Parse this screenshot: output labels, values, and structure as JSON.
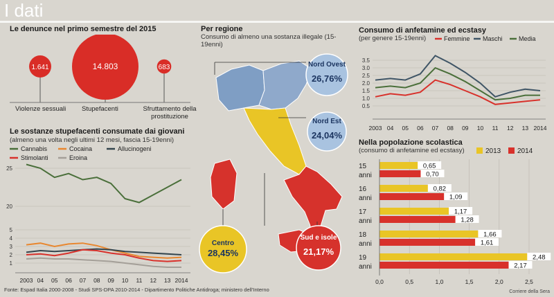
{
  "header": {
    "title": "I dati"
  },
  "denunce": {
    "title": "Le denunce nel primo semestre del 2015",
    "items": [
      {
        "label": "Violenze sessuali",
        "value": 1641,
        "text": "1.641"
      },
      {
        "label": "Stupefacenti",
        "value": 14803,
        "text": "14.803"
      },
      {
        "label": "Sfruttamento della prostituzione",
        "value": 683,
        "text": "683"
      }
    ],
    "color": "#d92d27"
  },
  "sostanze": {
    "title": "Le sostanze stupefacenti consumate dai giovani",
    "subtitle": "(almeno una volta negli ultimi 12 mesi, fascia 15-19enni)",
    "legend": [
      "Cannabis",
      "Cocaina",
      "Allucinogeni",
      "Stimolanti",
      "Eroina"
    ]
  },
  "regione": {
    "title": "Per regione",
    "subtitle": "Consumo di almeno una sostanza illegale (15-19enni)",
    "regions": [
      {
        "name": "Nord Ovest",
        "text": "26,76%",
        "value": 26.76,
        "color": "#7f9ec4"
      },
      {
        "name": "Nord Est",
        "text": "24,04%",
        "value": 24.04,
        "color": "#7f9ec4"
      },
      {
        "name": "Centro",
        "text": "28,45%",
        "value": 28.45,
        "color": "#e9c526"
      },
      {
        "name": "Sud e isole",
        "text": "21,17%",
        "value": 21.17,
        "color": "#d6322c"
      }
    ]
  },
  "anfetamine": {
    "title": "Consumo di anfetamine ed ecstasy",
    "subtitle": "(per genere 15-19enni)",
    "legend": [
      "Femmine",
      "Maschi",
      "Media"
    ]
  },
  "scolastica": {
    "title": "Nella popolazione scolastica",
    "subtitle": "(consumo di anfetamine ed ecstasy)",
    "legend": [
      "2013",
      "2014"
    ],
    "anni_label": "anni"
  },
  "footer": {
    "source": "Fonte: Espad Italia 2000-2008 - Studi SPS-DPA 2010-2014 - Dipartimento Politiche Antidroga; ministero dell'Interno",
    "credit": "Corriere della Sera"
  },
  "chart_data": [
    {
      "type": "scatter",
      "title": "Le denunce nel primo semestre del 2015",
      "categories": [
        "Violenze sessuali",
        "Stupefacenti",
        "Sfruttamento della prostituzione"
      ],
      "values": [
        1641,
        14803,
        683
      ]
    },
    {
      "type": "line",
      "title": "Le sostanze stupefacenti consumate dai giovani",
      "x": [
        "2003",
        "04",
        "05",
        "06",
        "07",
        "08",
        "09",
        "10",
        "11",
        "12",
        "13",
        "2014"
      ],
      "yticks": [
        1,
        2,
        3,
        4,
        5,
        20,
        25,
        30
      ],
      "series": [
        {
          "name": "Cannabis",
          "color": "#4a6f3a",
          "values": [
            25.5,
            25.0,
            23.8,
            24.3,
            23.5,
            23.8,
            23.0,
            21.0,
            20.5,
            21.5,
            22.5,
            23.5
          ]
        },
        {
          "name": "Cocaina",
          "color": "#e8872f",
          "values": [
            3.2,
            3.4,
            3.0,
            3.3,
            3.4,
            3.1,
            2.6,
            2.2,
            1.8,
            1.7,
            1.6,
            1.7
          ]
        },
        {
          "name": "Allucinogeni",
          "color": "#33444d",
          "values": [
            2.3,
            2.5,
            2.4,
            2.5,
            2.6,
            2.7,
            2.6,
            2.4,
            2.3,
            2.2,
            2.1,
            2.0
          ]
        },
        {
          "name": "Stimolanti",
          "color": "#d8312b",
          "values": [
            2.0,
            2.1,
            1.9,
            2.2,
            2.6,
            2.5,
            2.2,
            2.0,
            1.6,
            1.3,
            1.2,
            1.3
          ]
        },
        {
          "name": "Eroina",
          "color": "#a49f98",
          "values": [
            1.5,
            1.6,
            1.5,
            1.5,
            1.4,
            1.3,
            1.2,
            1.0,
            0.8,
            0.6,
            0.5,
            0.5
          ]
        }
      ]
    },
    {
      "type": "line",
      "title": "Consumo di anfetamine ed ecstasy",
      "x": [
        "2003",
        "04",
        "05",
        "06",
        "07",
        "08",
        "09",
        "10",
        "11",
        "12",
        "13",
        "2014"
      ],
      "ylim": [
        0,
        4
      ],
      "yticks": [
        0.5,
        1.0,
        1.5,
        2.0,
        2.5,
        3.0,
        3.5
      ],
      "series": [
        {
          "name": "Femmine",
          "color": "#d8312b",
          "values": [
            1.1,
            1.3,
            1.2,
            1.4,
            2.2,
            1.9,
            1.5,
            1.1,
            0.6,
            0.7,
            0.8,
            0.9
          ]
        },
        {
          "name": "Maschi",
          "color": "#3f5566",
          "values": [
            2.2,
            2.3,
            2.2,
            2.6,
            3.8,
            3.3,
            2.7,
            2.0,
            1.1,
            1.4,
            1.6,
            1.5
          ]
        },
        {
          "name": "Media",
          "color": "#4a6f3a",
          "values": [
            1.7,
            1.8,
            1.7,
            2.0,
            3.0,
            2.6,
            2.1,
            1.5,
            0.9,
            1.0,
            1.2,
            1.2
          ]
        }
      ]
    },
    {
      "type": "bar",
      "title": "Nella popolazione scolastica",
      "categories": [
        "15",
        "16",
        "17",
        "18",
        "19"
      ],
      "xlim": [
        0,
        2.5
      ],
      "xticks": [
        "0,0",
        "0,5",
        "1,0",
        "1,5",
        "2,0",
        "2,5"
      ],
      "series": [
        {
          "name": "2013",
          "color": "#e9c526",
          "values": [
            0.65,
            0.82,
            1.17,
            1.66,
            2.48
          ],
          "labels": [
            "0,65",
            "0,82",
            "1,17",
            "1,66",
            "2,48"
          ]
        },
        {
          "name": "2014",
          "color": "#d8312b",
          "values": [
            0.7,
            1.09,
            1.28,
            1.61,
            2.17
          ],
          "labels": [
            "0,70",
            "1,09",
            "1,28",
            "1,61",
            "2,17"
          ]
        }
      ]
    }
  ]
}
